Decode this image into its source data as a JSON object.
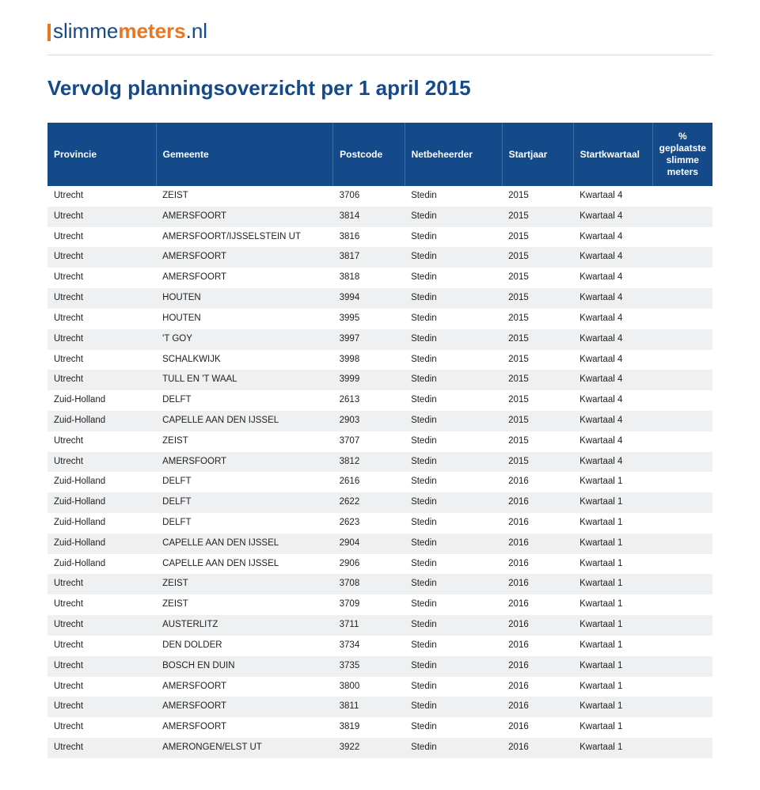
{
  "logo": {
    "part1": "slimme",
    "part2": "meters",
    "part3": ".nl"
  },
  "title": "Vervolg planningsoverzicht per 1 april 2015",
  "table": {
    "headers": {
      "provincie": "Provincie",
      "gemeente": "Gemeente",
      "postcode": "Postcode",
      "netbeheerder": "Netbeheerder",
      "startjaar": "Startjaar",
      "startkwartaal": "Startkwartaal",
      "meters_line1": "% geplaatste",
      "meters_line2": "slimme meters"
    },
    "rows": [
      [
        "Utrecht",
        "ZEIST",
        "3706",
        "Stedin",
        "2015",
        "Kwartaal 4",
        ""
      ],
      [
        "Utrecht",
        "AMERSFOORT",
        "3814",
        "Stedin",
        "2015",
        "Kwartaal 4",
        ""
      ],
      [
        "Utrecht",
        "AMERSFOORT/IJSSELSTEIN UT",
        "3816",
        "Stedin",
        "2015",
        "Kwartaal 4",
        ""
      ],
      [
        "Utrecht",
        "AMERSFOORT",
        "3817",
        "Stedin",
        "2015",
        "Kwartaal 4",
        ""
      ],
      [
        "Utrecht",
        "AMERSFOORT",
        "3818",
        "Stedin",
        "2015",
        "Kwartaal 4",
        ""
      ],
      [
        "Utrecht",
        "HOUTEN",
        "3994",
        "Stedin",
        "2015",
        "Kwartaal 4",
        ""
      ],
      [
        "Utrecht",
        "HOUTEN",
        "3995",
        "Stedin",
        "2015",
        "Kwartaal 4",
        ""
      ],
      [
        "Utrecht",
        "'T GOY",
        "3997",
        "Stedin",
        "2015",
        "Kwartaal 4",
        ""
      ],
      [
        "Utrecht",
        "SCHALKWIJK",
        "3998",
        "Stedin",
        "2015",
        "Kwartaal 4",
        ""
      ],
      [
        "Utrecht",
        "TULL EN 'T WAAL",
        "3999",
        "Stedin",
        "2015",
        "Kwartaal 4",
        ""
      ],
      [
        "Zuid-Holland",
        "DELFT",
        "2613",
        "Stedin",
        "2015",
        "Kwartaal 4",
        ""
      ],
      [
        "Zuid-Holland",
        "CAPELLE AAN DEN IJSSEL",
        "2903",
        "Stedin",
        "2015",
        "Kwartaal 4",
        ""
      ],
      [
        "Utrecht",
        "ZEIST",
        "3707",
        "Stedin",
        "2015",
        "Kwartaal 4",
        ""
      ],
      [
        "Utrecht",
        "AMERSFOORT",
        "3812",
        "Stedin",
        "2015",
        "Kwartaal 4",
        ""
      ],
      [
        "Zuid-Holland",
        "DELFT",
        "2616",
        "Stedin",
        "2016",
        "Kwartaal 1",
        ""
      ],
      [
        "Zuid-Holland",
        "DELFT",
        "2622",
        "Stedin",
        "2016",
        "Kwartaal 1",
        ""
      ],
      [
        "Zuid-Holland",
        "DELFT",
        "2623",
        "Stedin",
        "2016",
        "Kwartaal 1",
        ""
      ],
      [
        "Zuid-Holland",
        "CAPELLE AAN DEN IJSSEL",
        "2904",
        "Stedin",
        "2016",
        "Kwartaal 1",
        ""
      ],
      [
        "Zuid-Holland",
        "CAPELLE AAN DEN IJSSEL",
        "2906",
        "Stedin",
        "2016",
        "Kwartaal 1",
        ""
      ],
      [
        "Utrecht",
        "ZEIST",
        "3708",
        "Stedin",
        "2016",
        "Kwartaal 1",
        ""
      ],
      [
        "Utrecht",
        "ZEIST",
        "3709",
        "Stedin",
        "2016",
        "Kwartaal 1",
        ""
      ],
      [
        "Utrecht",
        "AUSTERLITZ",
        "3711",
        "Stedin",
        "2016",
        "Kwartaal 1",
        ""
      ],
      [
        "Utrecht",
        "DEN DOLDER",
        "3734",
        "Stedin",
        "2016",
        "Kwartaal 1",
        ""
      ],
      [
        "Utrecht",
        "BOSCH EN DUIN",
        "3735",
        "Stedin",
        "2016",
        "Kwartaal 1",
        ""
      ],
      [
        "Utrecht",
        "AMERSFOORT",
        "3800",
        "Stedin",
        "2016",
        "Kwartaal 1",
        ""
      ],
      [
        "Utrecht",
        "AMERSFOORT",
        "3811",
        "Stedin",
        "2016",
        "Kwartaal 1",
        ""
      ],
      [
        "Utrecht",
        "AMERSFOORT",
        "3819",
        "Stedin",
        "2016",
        "Kwartaal 1",
        ""
      ],
      [
        "Utrecht",
        "AMERONGEN/ELST UT",
        "3922",
        "Stedin",
        "2016",
        "Kwartaal 1",
        ""
      ]
    ]
  },
  "colors": {
    "header_bg": "#154a8a",
    "accent": "#e87722",
    "row_alt": "#eef0f2"
  }
}
